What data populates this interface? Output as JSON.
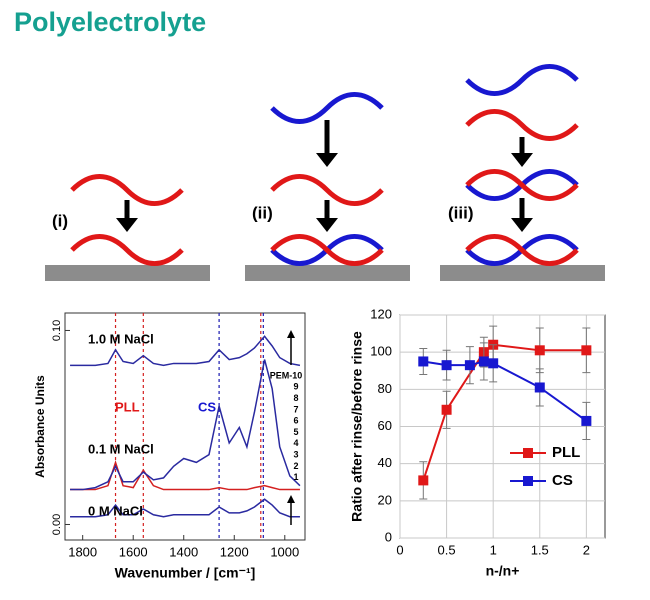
{
  "title": "Polyelectrolyte",
  "diagram": {
    "panels": [
      "(i)",
      "(ii)",
      "(iii)"
    ]
  },
  "chart_data": [
    {
      "type": "line",
      "xlabel": "Wavenumber / [cm⁻¹]",
      "ylabel": "Absorbance Units",
      "xlim": [
        1870,
        920
      ],
      "ylim": [
        -0.008,
        0.109
      ],
      "xticks": [
        1800,
        1600,
        1400,
        1200,
        1000
      ],
      "yticks": [
        {
          "value": 0.1,
          "label": "0.10"
        },
        {
          "value": 0,
          "label": "0.00"
        }
      ],
      "annotations": [
        "1.0 M NaCl",
        "0.1 M NaCl",
        "0 M NaCl",
        "PLL",
        "CS"
      ],
      "layer_labels": [
        "PEM-10",
        9,
        8,
        7,
        6,
        5,
        4,
        3,
        2,
        1
      ],
      "ref_lines": [
        {
          "value": 1670,
          "color": "#d42020"
        },
        {
          "value": 1560,
          "color": "#d42020"
        },
        {
          "value": 1260,
          "color": "#1a1ab0"
        },
        {
          "value": 1095,
          "color": "#d42020"
        },
        {
          "value": 1085,
          "color": "#1a1ab0"
        }
      ],
      "x": [
        1850,
        1800,
        1750,
        1700,
        1670,
        1640,
        1600,
        1560,
        1520,
        1480,
        1440,
        1400,
        1350,
        1300,
        1260,
        1220,
        1180,
        1150,
        1120,
        1080,
        1050,
        1020,
        980,
        940
      ],
      "series": [
        {
          "color": "#2a2aa0",
          "values": [
            0.082,
            0.082,
            0.082,
            0.083,
            0.09,
            0.084,
            0.083,
            0.087,
            0.083,
            0.082,
            0.083,
            0.083,
            0.083,
            0.084,
            0.09,
            0.085,
            0.086,
            0.088,
            0.091,
            0.097,
            0.092,
            0.086,
            0.083,
            0.082
          ]
        },
        {
          "color": "#d42020",
          "values": [
            0.018,
            0.018,
            0.018,
            0.02,
            0.032,
            0.02,
            0.019,
            0.028,
            0.02,
            0.018,
            0.018,
            0.018,
            0.018,
            0.018,
            0.019,
            0.018,
            0.018,
            0.018,
            0.019,
            0.02,
            0.019,
            0.018,
            0.018,
            0.018
          ]
        },
        {
          "color": "#2a2aa0",
          "values": [
            0.018,
            0.018,
            0.019,
            0.022,
            0.03,
            0.022,
            0.022,
            0.027,
            0.023,
            0.024,
            0.03,
            0.034,
            0.032,
            0.036,
            0.061,
            0.042,
            0.05,
            0.04,
            0.058,
            0.085,
            0.07,
            0.04,
            0.025,
            0.02
          ]
        },
        {
          "color": "#2a2aa0",
          "values": [
            0.004,
            0.004,
            0.004,
            0.005,
            0.01,
            0.005,
            0.005,
            0.008,
            0.005,
            0.004,
            0.005,
            0.005,
            0.005,
            0.005,
            0.009,
            0.006,
            0.006,
            0.007,
            0.009,
            0.013,
            0.01,
            0.006,
            0.004,
            0.004
          ]
        }
      ]
    },
    {
      "type": "line",
      "markers": true,
      "grid": true,
      "legend": "lower right",
      "xlabel": "n-/n+",
      "ylabel": "Ratio after rinse/before rinse",
      "xlim": [
        0,
        2.2
      ],
      "ylim": [
        0,
        120
      ],
      "xticks": [
        0,
        0.5,
        1,
        1.5,
        2
      ],
      "yticks": [
        0,
        20,
        40,
        60,
        80,
        100,
        120
      ],
      "series": [
        {
          "name": "PLL",
          "color": "#e01818",
          "x": [
            0.25,
            0.5,
            0.9,
            1,
            1.5,
            2
          ],
          "values": [
            31,
            69,
            100,
            104,
            101,
            101
          ],
          "errors": [
            10,
            10,
            8,
            10,
            12,
            12
          ]
        },
        {
          "name": "CS",
          "color": "#1818d0",
          "x": [
            0.25,
            0.5,
            0.75,
            0.9,
            1,
            1.5,
            2
          ],
          "values": [
            95,
            93,
            93,
            95,
            94,
            81,
            63
          ],
          "errors": [
            7,
            8,
            10,
            10,
            10,
            10,
            10
          ]
        }
      ]
    }
  ]
}
